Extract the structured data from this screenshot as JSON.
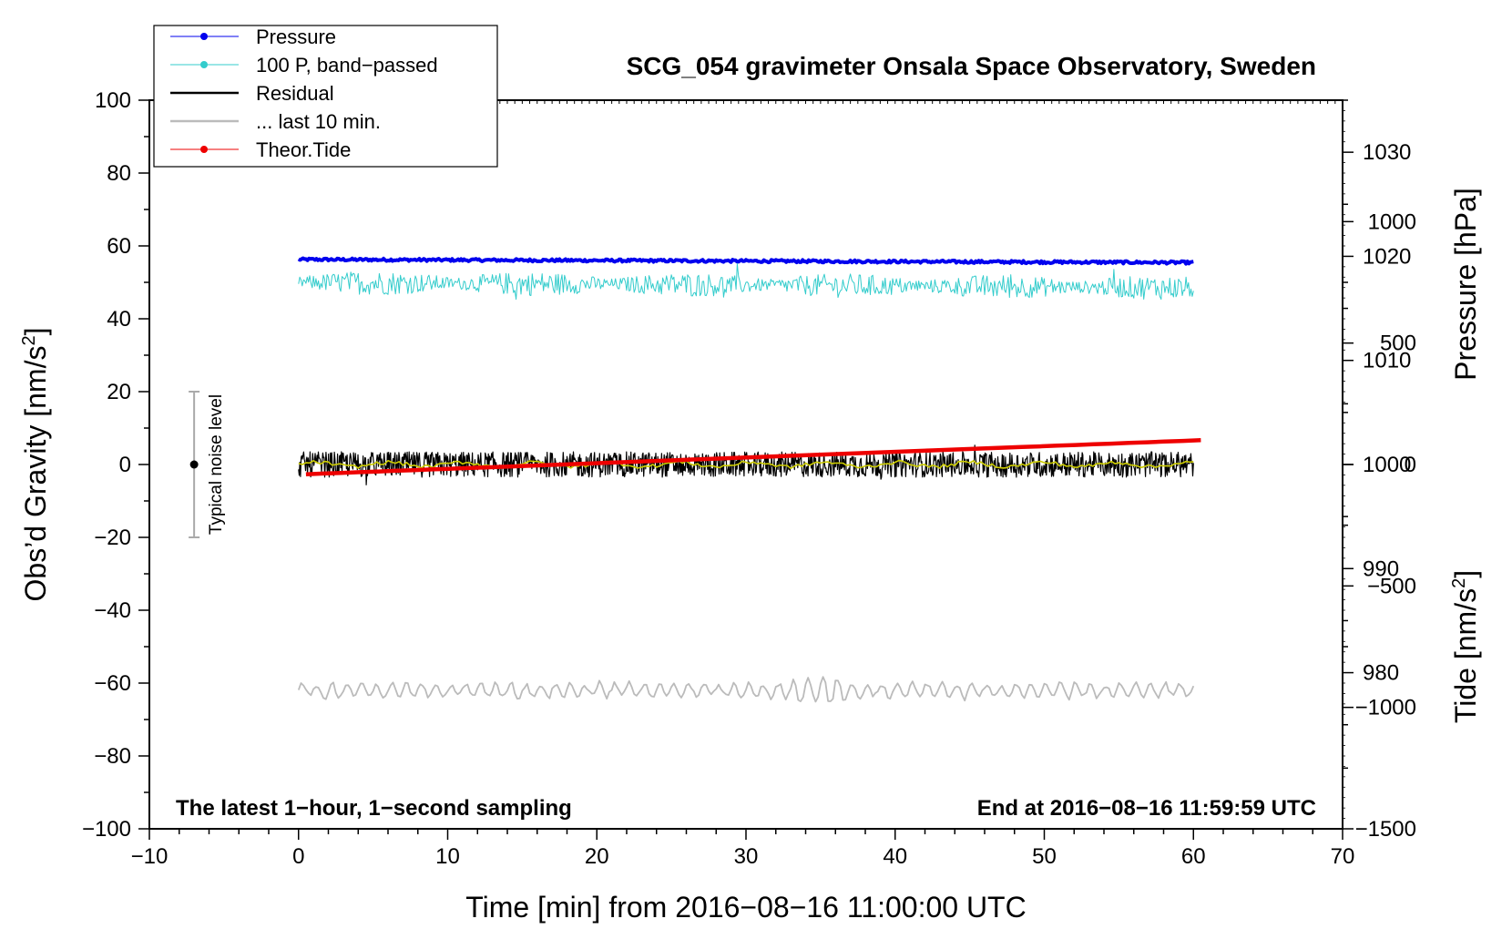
{
  "chart_data": {
    "type": "line",
    "title": "SCG_054 gravimeter Onsala Space Observatory, Sweden",
    "xlabel": "Time [min] from 2016−08−16 11:00:00 UTC",
    "ylabel_left": "Obs’d Gravity [nm/s",
    "ylabel_left_sup": "2",
    "ylabel_left_end": "]",
    "ylabel_right_pressure": "Pressure [hPa]",
    "ylabel_right_tide": "Tide [nm/s",
    "ylabel_right_tide_sup": "2",
    "ylabel_right_tide_end": "]",
    "xlim": [
      -10,
      70
    ],
    "ylim": [
      -100,
      100
    ],
    "pressure_lim": [
      965,
      1035
    ],
    "tide_lim": [
      -1500,
      1500
    ],
    "x_ticks": [
      "−10",
      "0",
      "10",
      "20",
      "30",
      "40",
      "50",
      "60",
      "70"
    ],
    "x_tick_values": [
      -10,
      0,
      10,
      20,
      30,
      40,
      50,
      60,
      70
    ],
    "y_ticks": [
      "−100",
      "−80",
      "−60",
      "−40",
      "−20",
      "0",
      "20",
      "40",
      "60",
      "80",
      "100"
    ],
    "y_tick_values": [
      -100,
      -80,
      -60,
      -40,
      -20,
      0,
      20,
      40,
      60,
      80,
      100
    ],
    "pressure_ticks": [
      "980",
      "990",
      "1000",
      "1010",
      "1020",
      "1030"
    ],
    "pressure_tick_values": [
      980,
      990,
      1000,
      1010,
      1020,
      1030
    ],
    "tide_ticks": [
      "−1500",
      "−1000",
      "−500",
      "0",
      "500",
      "1000"
    ],
    "tide_tick_values": [
      -1500,
      -1000,
      -500,
      0,
      500,
      1000
    ],
    "legend": [
      {
        "label": "Pressure",
        "color": "#0000ee",
        "marker": true
      },
      {
        "label": "100 P, band−passed",
        "color": "#33cccc",
        "marker": true
      },
      {
        "label": "Residual",
        "color": "#000000",
        "marker": false
      },
      {
        "label": "... last 10 min.",
        "color": "#bbbbbb",
        "marker": false
      },
      {
        "label": "Theor.Tide",
        "color": "#ee0000",
        "marker": true
      }
    ],
    "series": [
      {
        "name": "Pressure",
        "axis": "pressure",
        "color": "#0000ee",
        "x_range": [
          0,
          60
        ],
        "start": 1019.7,
        "end": 1019.4
      },
      {
        "name": "100 P, band−passed",
        "axis": "gravity",
        "color": "#33cccc",
        "x_range": [
          0,
          60
        ],
        "center": 50,
        "amplitude": 2.5
      },
      {
        "name": "Residual",
        "axis": "gravity",
        "color": "#000000",
        "x_range": [
          0,
          60
        ],
        "center": 0,
        "amplitude": 3.5
      },
      {
        "name": "Residual smoothed",
        "axis": "gravity",
        "color": "#cccc00",
        "x_range": [
          0,
          60
        ],
        "center": 0,
        "amplitude": 1
      },
      {
        "name": "Theor.Tide",
        "axis": "tide",
        "color": "#ee0000",
        "x_range": [
          0.5,
          60.5
        ],
        "start": -40,
        "end": 100
      },
      {
        "name": "... last 10 min.",
        "axis": "gravity",
        "color": "#bbbbbb",
        "x_range": [
          0,
          60
        ],
        "center": -62,
        "amplitude": 2
      }
    ],
    "noise_bar": {
      "x": -7,
      "center": 0,
      "low": -20,
      "high": 20,
      "label": "Typical noise level"
    },
    "annotation_left": "The latest 1−hour, 1−second sampling",
    "annotation_right": "End at 2016−08−16 11:59:59 UTC"
  }
}
